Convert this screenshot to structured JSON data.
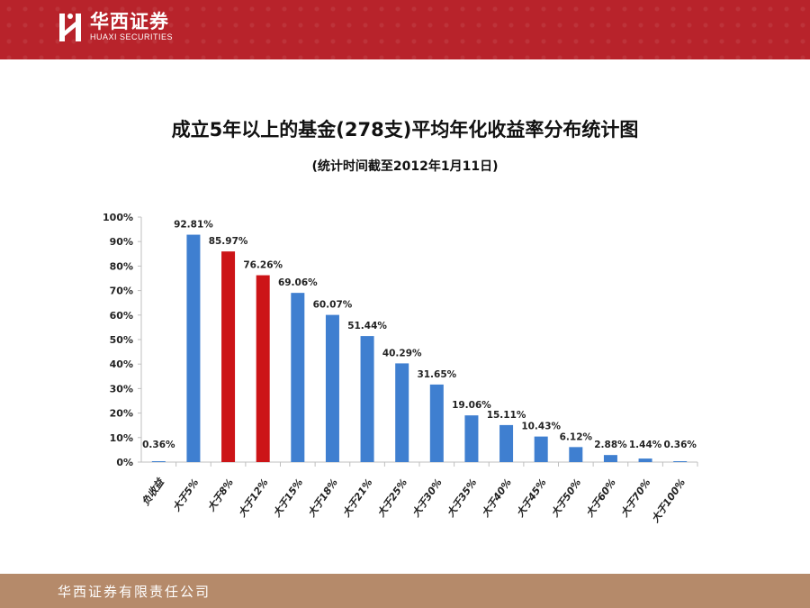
{
  "header": {
    "brand_cn": "华西证券",
    "brand_en": "HUAXI SECURITIES",
    "color": "#b8232b"
  },
  "footer": {
    "text": "华西证券有限责任公司",
    "color": "#b58a6a"
  },
  "chart_data": {
    "type": "bar",
    "title": "成立5年以上的基金(278支)平均年化收益率分布统计图",
    "subtitle": "(统计时间截至2012年1月11日)",
    "categories": [
      "负收益",
      "大于5%",
      "大于8%",
      "大于12%",
      "大于15%",
      "大于18%",
      "大于21%",
      "大于25%",
      "大于30%",
      "大于35%",
      "大于40%",
      "大于45%",
      "大于50%",
      "大于60%",
      "大于70%",
      "大于100%"
    ],
    "values": [
      0.36,
      92.81,
      85.97,
      76.26,
      69.06,
      60.07,
      51.44,
      40.29,
      31.65,
      19.06,
      15.11,
      10.43,
      6.12,
      2.88,
      1.44,
      0.36
    ],
    "data_labels": [
      "0.36%",
      "92.81%",
      "85.97%",
      "76.26%",
      "69.06%",
      "60.07%",
      "51.44%",
      "40.29%",
      "31.65%",
      "19.06%",
      "15.11%",
      "10.43%",
      "6.12%",
      "2.88%",
      "1.44%",
      "0.36%"
    ],
    "highlighted_indices": [
      2,
      3
    ],
    "colors": {
      "default": "#3f7fd0",
      "highlight": "#cc1417"
    },
    "ylim": [
      0,
      100
    ],
    "yticks": [
      "0%",
      "10%",
      "20%",
      "30%",
      "40%",
      "50%",
      "60%",
      "70%",
      "80%",
      "90%",
      "100%"
    ],
    "grid": false
  }
}
